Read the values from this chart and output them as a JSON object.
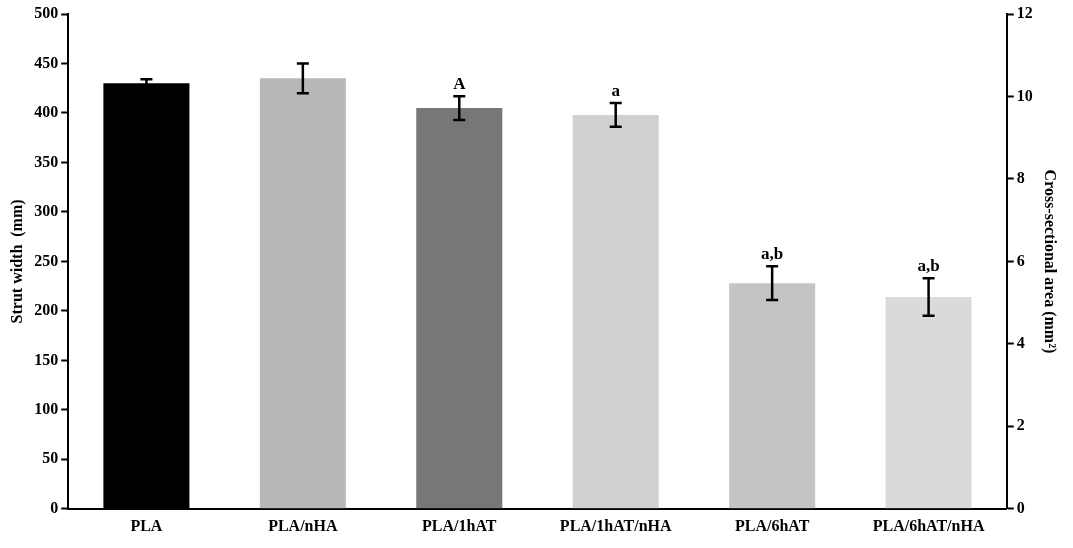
{
  "chart_data": {
    "type": "bar",
    "ylabel": "Strut width  (mm)",
    "y2label": "Cross-sectional area (mm²)",
    "categories": [
      "PLA",
      "PLA/nHA",
      "PLA/1hAT",
      "PLA/1hAT/nHA",
      "PLA/6hAT",
      "PLA/6hAT/nHA"
    ],
    "values": [
      430,
      435,
      405,
      398,
      228,
      214
    ],
    "errors": [
      4,
      15,
      12,
      12,
      17,
      19
    ],
    "colors": [
      "#000000",
      "#b8b8b8",
      "#777777",
      "#d0d0d0",
      "#c4c4c4",
      "#dadada"
    ],
    "ylim": [
      0,
      500
    ],
    "yticks": [
      0,
      50,
      100,
      150,
      200,
      250,
      300,
      350,
      400,
      450,
      500
    ],
    "y2lim": [
      0,
      12
    ],
    "y2ticks": [
      0,
      2,
      4,
      6,
      8,
      10,
      12
    ],
    "annotations": [
      {
        "text": "A",
        "x": "PLA/1hAT",
        "y": 417
      },
      {
        "text": "a",
        "x": "PLA/1hAT/nHA",
        "y": 410
      },
      {
        "text": "a,b",
        "x": "PLA/6hAT",
        "y": 245
      },
      {
        "text": "a,b",
        "x": "PLA/6hAT/nHA",
        "y": 233
      }
    ],
    "grid": false,
    "legend": false
  }
}
